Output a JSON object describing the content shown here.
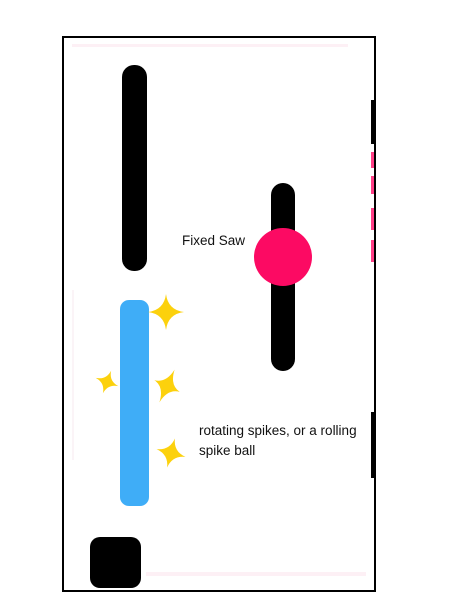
{
  "level": {
    "labels": {
      "fixed_saw": "Fixed Saw",
      "rotating_spikes": "rotating spikes, or a rolling spike ball"
    },
    "colors": {
      "walls": "#000000",
      "rotating_wall": "#3fadf7",
      "saw": "#fc0a63",
      "spike_stars": "#fcd10d",
      "hazard_dashes": "#ff3f87",
      "background": "#ffffff"
    },
    "icons": {
      "spike": "four-point-star-icon",
      "saw": "circle-saw-icon"
    }
  }
}
